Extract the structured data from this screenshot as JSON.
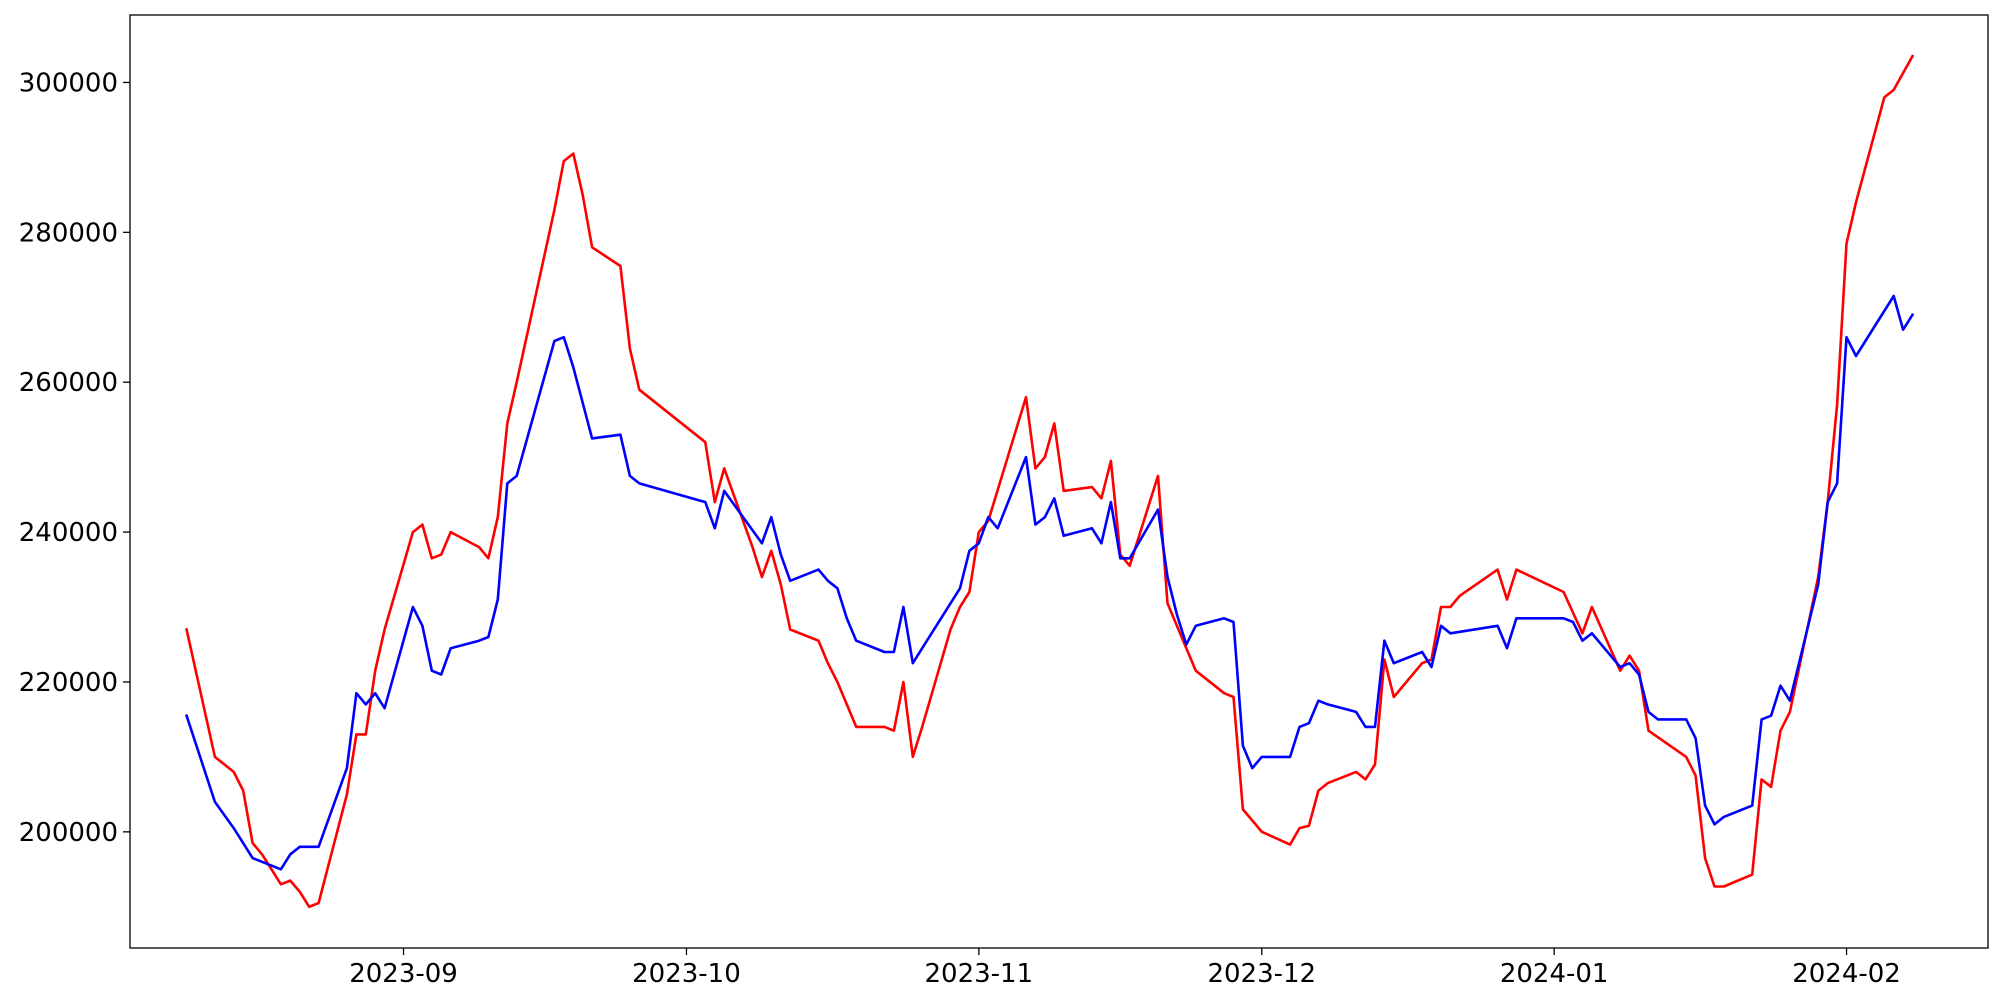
{
  "chart_data": {
    "type": "line",
    "title": "",
    "xlabel": "",
    "ylabel": "",
    "grid": false,
    "xlim": [
      "2023-08-03",
      "2024-02-16"
    ],
    "ylim": [
      184500,
      309000
    ],
    "x_ticks": [
      "2023-09",
      "2023-10",
      "2023-11",
      "2023-12",
      "2024-01",
      "2024-02"
    ],
    "y_ticks": [
      200000,
      220000,
      240000,
      260000,
      280000,
      300000
    ],
    "series": [
      {
        "color": "#ff0000",
        "points": [
          [
            "2023-08-09",
            227000
          ],
          [
            "2023-08-12",
            210000
          ],
          [
            "2023-08-14",
            208000
          ],
          [
            "2023-08-15",
            205500
          ],
          [
            "2023-08-16",
            198500
          ],
          [
            "2023-08-17",
            197000
          ],
          [
            "2023-08-18",
            195000
          ],
          [
            "2023-08-19",
            193000
          ],
          [
            "2023-08-20",
            193500
          ],
          [
            "2023-08-21",
            192000
          ],
          [
            "2023-08-22",
            190000
          ],
          [
            "2023-08-23",
            190500
          ],
          [
            "2023-08-26",
            205000
          ],
          [
            "2023-08-27",
            213000
          ],
          [
            "2023-08-28",
            213000
          ],
          [
            "2023-08-29",
            221500
          ],
          [
            "2023-08-30",
            227000
          ],
          [
            "2023-09-02",
            240000
          ],
          [
            "2023-09-03",
            241000
          ],
          [
            "2023-09-04",
            236500
          ],
          [
            "2023-09-05",
            237000
          ],
          [
            "2023-09-06",
            240000
          ],
          [
            "2023-09-09",
            238000
          ],
          [
            "2023-09-10",
            236500
          ],
          [
            "2023-09-11",
            242000
          ],
          [
            "2023-09-12",
            254500
          ],
          [
            "2023-09-13",
            260000
          ],
          [
            "2023-09-17",
            283000
          ],
          [
            "2023-09-18",
            289500
          ],
          [
            "2023-09-19",
            290500
          ],
          [
            "2023-09-20",
            285000
          ],
          [
            "2023-09-21",
            278000
          ],
          [
            "2023-09-24",
            275500
          ],
          [
            "2023-09-25",
            264500
          ],
          [
            "2023-09-26",
            259000
          ],
          [
            "2023-10-03",
            252000
          ],
          [
            "2023-10-04",
            244000
          ],
          [
            "2023-10-05",
            248500
          ],
          [
            "2023-10-08",
            238000
          ],
          [
            "2023-10-09",
            234000
          ],
          [
            "2023-10-10",
            237500
          ],
          [
            "2023-10-11",
            233000
          ],
          [
            "2023-10-12",
            227000
          ],
          [
            "2023-10-15",
            225500
          ],
          [
            "2023-10-16",
            222500
          ],
          [
            "2023-10-17",
            220000
          ],
          [
            "2023-10-18",
            217000
          ],
          [
            "2023-10-19",
            214000
          ],
          [
            "2023-10-22",
            214000
          ],
          [
            "2023-10-23",
            213500
          ],
          [
            "2023-10-24",
            220000
          ],
          [
            "2023-10-25",
            210000
          ],
          [
            "2023-10-26",
            214000
          ],
          [
            "2023-10-29",
            227000
          ],
          [
            "2023-10-30",
            230000
          ],
          [
            "2023-10-31",
            232000
          ],
          [
            "2023-11-01",
            240000
          ],
          [
            "2023-11-02",
            241500
          ],
          [
            "2023-11-06",
            258000
          ],
          [
            "2023-11-07",
            248500
          ],
          [
            "2023-11-08",
            250000
          ],
          [
            "2023-11-09",
            254500
          ],
          [
            "2023-11-10",
            245500
          ],
          [
            "2023-11-13",
            246000
          ],
          [
            "2023-11-14",
            244500
          ],
          [
            "2023-11-15",
            249500
          ],
          [
            "2023-11-16",
            237000
          ],
          [
            "2023-11-17",
            235500
          ],
          [
            "2023-11-20",
            247500
          ],
          [
            "2023-11-21",
            230500
          ],
          [
            "2023-11-22",
            227500
          ],
          [
            "2023-11-24",
            221500
          ],
          [
            "2023-11-27",
            218500
          ],
          [
            "2023-11-28",
            218000
          ],
          [
            "2023-11-29",
            203000
          ],
          [
            "2023-12-01",
            200000
          ],
          [
            "2023-12-04",
            198300
          ],
          [
            "2023-12-05",
            200500
          ],
          [
            "2023-12-06",
            200800
          ],
          [
            "2023-12-07",
            205500
          ],
          [
            "2023-12-08",
            206500
          ],
          [
            "2023-12-11",
            208000
          ],
          [
            "2023-12-12",
            207000
          ],
          [
            "2023-12-13",
            209000
          ],
          [
            "2023-12-14",
            223000
          ],
          [
            "2023-12-15",
            218000
          ],
          [
            "2023-12-18",
            222500
          ],
          [
            "2023-12-19",
            223000
          ],
          [
            "2023-12-20",
            230000
          ],
          [
            "2023-12-21",
            230000
          ],
          [
            "2023-12-22",
            231500
          ],
          [
            "2023-12-26",
            235000
          ],
          [
            "2023-12-27",
            231000
          ],
          [
            "2023-12-28",
            235000
          ],
          [
            "2024-01-02",
            232000
          ],
          [
            "2024-01-04",
            226500
          ],
          [
            "2024-01-05",
            230000
          ],
          [
            "2024-01-08",
            221500
          ],
          [
            "2024-01-09",
            223500
          ],
          [
            "2024-01-10",
            221500
          ],
          [
            "2024-01-11",
            213500
          ],
          [
            "2024-01-15",
            210000
          ],
          [
            "2024-01-16",
            207500
          ],
          [
            "2024-01-17",
            196500
          ],
          [
            "2024-01-18",
            192700
          ],
          [
            "2024-01-19",
            192700
          ],
          [
            "2024-01-22",
            194300
          ],
          [
            "2024-01-23",
            207000
          ],
          [
            "2024-01-24",
            206000
          ],
          [
            "2024-01-25",
            213500
          ],
          [
            "2024-01-26",
            216000
          ],
          [
            "2024-01-29",
            234000
          ],
          [
            "2024-01-30",
            244000
          ],
          [
            "2024-01-31",
            257000
          ],
          [
            "2024-02-01",
            278500
          ],
          [
            "2024-02-02",
            284000
          ],
          [
            "2024-02-05",
            298000
          ],
          [
            "2024-02-06",
            299000
          ],
          [
            "2024-02-08",
            303500
          ]
        ]
      },
      {
        "color": "#0000ff",
        "points": [
          [
            "2023-08-09",
            215500
          ],
          [
            "2023-08-12",
            204000
          ],
          [
            "2023-08-14",
            200500
          ],
          [
            "2023-08-16",
            196500
          ],
          [
            "2023-08-19",
            195000
          ],
          [
            "2023-08-20",
            197000
          ],
          [
            "2023-08-21",
            198000
          ],
          [
            "2023-08-23",
            198000
          ],
          [
            "2023-08-26",
            208500
          ],
          [
            "2023-08-27",
            218500
          ],
          [
            "2023-08-28",
            217000
          ],
          [
            "2023-08-29",
            218500
          ],
          [
            "2023-08-30",
            216500
          ],
          [
            "2023-09-02",
            230000
          ],
          [
            "2023-09-03",
            227500
          ],
          [
            "2023-09-04",
            221500
          ],
          [
            "2023-09-05",
            221000
          ],
          [
            "2023-09-06",
            224500
          ],
          [
            "2023-09-09",
            225500
          ],
          [
            "2023-09-10",
            226000
          ],
          [
            "2023-09-11",
            231000
          ],
          [
            "2023-09-12",
            246500
          ],
          [
            "2023-09-13",
            247500
          ],
          [
            "2023-09-17",
            265500
          ],
          [
            "2023-09-18",
            266000
          ],
          [
            "2023-09-19",
            262000
          ],
          [
            "2023-09-21",
            252500
          ],
          [
            "2023-09-24",
            253000
          ],
          [
            "2023-09-25",
            247500
          ],
          [
            "2023-09-26",
            246500
          ],
          [
            "2023-10-03",
            244000
          ],
          [
            "2023-10-04",
            240500
          ],
          [
            "2023-10-05",
            245500
          ],
          [
            "2023-10-09",
            238500
          ],
          [
            "2023-10-10",
            242000
          ],
          [
            "2023-10-11",
            237000
          ],
          [
            "2023-10-12",
            233500
          ],
          [
            "2023-10-15",
            235000
          ],
          [
            "2023-10-16",
            233500
          ],
          [
            "2023-10-17",
            232500
          ],
          [
            "2023-10-18",
            228500
          ],
          [
            "2023-10-19",
            225500
          ],
          [
            "2023-10-22",
            224000
          ],
          [
            "2023-10-23",
            224000
          ],
          [
            "2023-10-24",
            230000
          ],
          [
            "2023-10-25",
            222500
          ],
          [
            "2023-10-26",
            224500
          ],
          [
            "2023-10-30",
            232500
          ],
          [
            "2023-10-31",
            237500
          ],
          [
            "2023-11-01",
            238500
          ],
          [
            "2023-11-02",
            242000
          ],
          [
            "2023-11-03",
            240500
          ],
          [
            "2023-11-06",
            250000
          ],
          [
            "2023-11-07",
            241000
          ],
          [
            "2023-11-08",
            242000
          ],
          [
            "2023-11-09",
            244500
          ],
          [
            "2023-11-10",
            239500
          ],
          [
            "2023-11-13",
            240500
          ],
          [
            "2023-11-14",
            238500
          ],
          [
            "2023-11-15",
            244000
          ],
          [
            "2023-11-16",
            236500
          ],
          [
            "2023-11-17",
            236500
          ],
          [
            "2023-11-20",
            243000
          ],
          [
            "2023-11-21",
            234000
          ],
          [
            "2023-11-22",
            229000
          ],
          [
            "2023-11-23",
            225000
          ],
          [
            "2023-11-24",
            227500
          ],
          [
            "2023-11-27",
            228500
          ],
          [
            "2023-11-28",
            228000
          ],
          [
            "2023-11-29",
            211500
          ],
          [
            "2023-11-30",
            208500
          ],
          [
            "2023-12-01",
            210000
          ],
          [
            "2023-12-04",
            210000
          ],
          [
            "2023-12-05",
            214000
          ],
          [
            "2023-12-06",
            214500
          ],
          [
            "2023-12-07",
            217500
          ],
          [
            "2023-12-08",
            217000
          ],
          [
            "2023-12-11",
            216000
          ],
          [
            "2023-12-12",
            214000
          ],
          [
            "2023-12-13",
            214000
          ],
          [
            "2023-12-14",
            225500
          ],
          [
            "2023-12-15",
            222500
          ],
          [
            "2023-12-18",
            224000
          ],
          [
            "2023-12-19",
            222000
          ],
          [
            "2023-12-20",
            227500
          ],
          [
            "2023-12-21",
            226500
          ],
          [
            "2023-12-26",
            227500
          ],
          [
            "2023-12-27",
            224500
          ],
          [
            "2023-12-28",
            228500
          ],
          [
            "2024-01-02",
            228500
          ],
          [
            "2024-01-03",
            228000
          ],
          [
            "2024-01-04",
            225500
          ],
          [
            "2024-01-05",
            226500
          ],
          [
            "2024-01-08",
            222000
          ],
          [
            "2024-01-09",
            222500
          ],
          [
            "2024-01-10",
            221000
          ],
          [
            "2024-01-11",
            216000
          ],
          [
            "2024-01-12",
            215000
          ],
          [
            "2024-01-15",
            215000
          ],
          [
            "2024-01-16",
            212500
          ],
          [
            "2024-01-17",
            203500
          ],
          [
            "2024-01-18",
            201000
          ],
          [
            "2024-01-19",
            202000
          ],
          [
            "2024-01-22",
            203500
          ],
          [
            "2024-01-23",
            215000
          ],
          [
            "2024-01-24",
            215500
          ],
          [
            "2024-01-25",
            219500
          ],
          [
            "2024-01-26",
            217500
          ],
          [
            "2024-01-29",
            233000
          ],
          [
            "2024-01-30",
            244000
          ],
          [
            "2024-01-31",
            246500
          ],
          [
            "2024-02-01",
            266000
          ],
          [
            "2024-02-02",
            263500
          ],
          [
            "2024-02-06",
            271500
          ],
          [
            "2024-02-07",
            267000
          ],
          [
            "2024-02-08",
            269000
          ]
        ]
      }
    ]
  }
}
